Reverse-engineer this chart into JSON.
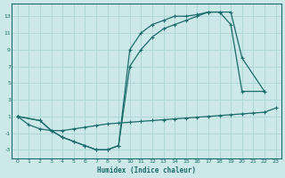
{
  "xlabel": "Humidex (Indice chaleur)",
  "bg_color": "#cce8e8",
  "grid_color": "#aad4d4",
  "line_color": "#1a6b6b",
  "xlim": [
    -0.5,
    23.5
  ],
  "ylim": [
    -4,
    14.5
  ],
  "xticks": [
    0,
    1,
    2,
    3,
    4,
    5,
    6,
    7,
    8,
    9,
    10,
    11,
    12,
    13,
    14,
    15,
    16,
    17,
    18,
    19,
    20,
    21,
    22,
    23
  ],
  "yticks": [
    -3,
    -1,
    1,
    3,
    5,
    7,
    9,
    11,
    13
  ],
  "line1_x": [
    0,
    1,
    2,
    3,
    4,
    5,
    6,
    7,
    8,
    9,
    10,
    11,
    12,
    13,
    14,
    15,
    16,
    17,
    18,
    19,
    20,
    21,
    22,
    23
  ],
  "line1_y": [
    1,
    0,
    -0.5,
    -0.7,
    -0.7,
    -0.5,
    -0.3,
    -0.1,
    0.1,
    0.2,
    0.3,
    0.4,
    0.5,
    0.6,
    0.7,
    0.8,
    0.9,
    1.0,
    1.1,
    1.2,
    1.3,
    1.4,
    1.5,
    2.0
  ],
  "line2_x": [
    0,
    2,
    3,
    4,
    5,
    6,
    7,
    8,
    9,
    10,
    11,
    12,
    13,
    14,
    15,
    16,
    17,
    18,
    19,
    20,
    22
  ],
  "line2_y": [
    1,
    0.5,
    -0.7,
    -1.5,
    -2.0,
    -2.5,
    -3.0,
    -3.0,
    -2.5,
    9.0,
    11.0,
    12.0,
    12.5,
    13.0,
    13.0,
    13.2,
    13.5,
    13.5,
    13.5,
    8.0,
    4.0
  ],
  "line3_x": [
    0,
    2,
    3,
    4,
    5,
    6,
    7,
    8,
    9,
    10,
    11,
    12,
    13,
    14,
    15,
    16,
    17,
    18,
    19,
    20,
    22
  ],
  "line3_y": [
    1,
    0.5,
    -0.7,
    -1.5,
    -2.0,
    -2.5,
    -3.0,
    -3.0,
    -2.5,
    7.0,
    9.0,
    10.5,
    11.5,
    12.0,
    12.5,
    13.0,
    13.5,
    13.5,
    12.0,
    4.0,
    4.0
  ]
}
